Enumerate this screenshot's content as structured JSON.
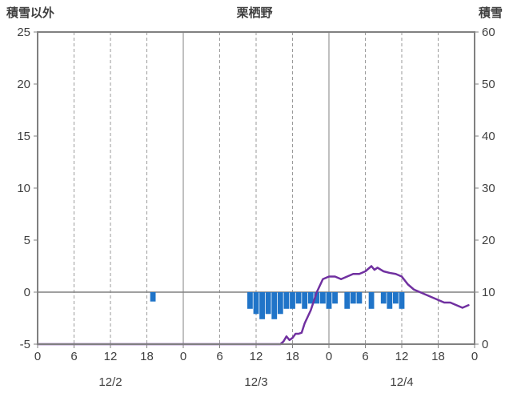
{
  "header": {
    "left_label": "積雪以外",
    "title": "栗栖野",
    "right_label": "積雪"
  },
  "colors": {
    "axis": "#808080",
    "grid": "#9a9a9a",
    "text": "#3f3f3f",
    "bar": "#2074C8",
    "line": "#7030A0",
    "background": "#ffffff"
  },
  "chart_data": {
    "type": "combo",
    "title": "栗栖野",
    "x_axis": {
      "unit": "hour",
      "range_hours": [
        0,
        72
      ],
      "tick_hours": [
        0,
        6,
        12,
        18,
        24,
        30,
        36,
        42,
        48,
        54,
        60,
        66,
        72
      ],
      "tick_labels": [
        "0",
        "6",
        "12",
        "18",
        "0",
        "6",
        "12",
        "18",
        "0",
        "6",
        "12",
        "18",
        "0"
      ],
      "day_labels": [
        {
          "label": "12/2",
          "hour": 12
        },
        {
          "label": "12/3",
          "hour": 36
        },
        {
          "label": "12/4",
          "hour": 60
        }
      ],
      "solid_line_hours": [
        24,
        48
      ],
      "dashed_line_hours": [
        6,
        12,
        18,
        30,
        36,
        42,
        54,
        60,
        66
      ]
    },
    "left_axis": {
      "title": "積雪以外",
      "range": [
        -5,
        25
      ],
      "ticks": [
        25,
        20,
        15,
        10,
        5,
        0,
        -5
      ],
      "zero_line_value": 0
    },
    "right_axis": {
      "title": "積雪",
      "range": [
        0,
        60
      ],
      "ticks": [
        60,
        50,
        40,
        30,
        20,
        10,
        0
      ]
    },
    "series": [
      {
        "name": "積雪以外",
        "type": "bar",
        "axis": "left",
        "color": "#2074C8",
        "points": [
          [
            19,
            -0.9
          ],
          [
            35,
            -1.6
          ],
          [
            36,
            -2.1
          ],
          [
            37,
            -2.6
          ],
          [
            38,
            -2.1
          ],
          [
            39,
            -2.6
          ],
          [
            40,
            -2.1
          ],
          [
            41,
            -1.6
          ],
          [
            42,
            -1.6
          ],
          [
            43,
            -1.1
          ],
          [
            44,
            -1.6
          ],
          [
            45,
            -1.1
          ],
          [
            46,
            -1.1
          ],
          [
            47,
            -1.1
          ],
          [
            48,
            -1.6
          ],
          [
            49,
            -1.1
          ],
          [
            51,
            -1.6
          ],
          [
            52,
            -1.1
          ],
          [
            53,
            -1.1
          ],
          [
            55,
            -1.6
          ],
          [
            57,
            -1.1
          ],
          [
            58,
            -1.6
          ],
          [
            59,
            -1.1
          ],
          [
            60,
            -1.6
          ]
        ]
      },
      {
        "name": "積雪",
        "type": "line",
        "axis": "right",
        "color": "#7030A0",
        "points": [
          [
            0,
            0
          ],
          [
            40,
            0
          ],
          [
            40.5,
            0.5
          ],
          [
            41,
            1.5
          ],
          [
            41.5,
            0.8
          ],
          [
            42,
            1.2
          ],
          [
            42.5,
            2
          ],
          [
            43,
            2
          ],
          [
            43.5,
            2.2
          ],
          [
            44,
            4
          ],
          [
            45,
            6.5
          ],
          [
            46,
            10
          ],
          [
            47,
            12.5
          ],
          [
            48,
            13
          ],
          [
            49,
            13
          ],
          [
            50,
            12.5
          ],
          [
            51,
            13
          ],
          [
            52,
            13.5
          ],
          [
            53,
            13.5
          ],
          [
            54,
            14
          ],
          [
            55,
            15
          ],
          [
            55.5,
            14.3
          ],
          [
            56,
            14.7
          ],
          [
            57,
            14
          ],
          [
            58,
            13.7
          ],
          [
            59,
            13.5
          ],
          [
            60,
            13
          ],
          [
            61,
            11.5
          ],
          [
            62,
            10.5
          ],
          [
            63,
            10
          ],
          [
            64,
            9.5
          ],
          [
            65,
            9
          ],
          [
            66,
            8.5
          ],
          [
            67,
            8
          ],
          [
            68,
            8
          ],
          [
            69,
            7.5
          ],
          [
            70,
            7
          ],
          [
            71,
            7.5
          ]
        ]
      }
    ]
  }
}
